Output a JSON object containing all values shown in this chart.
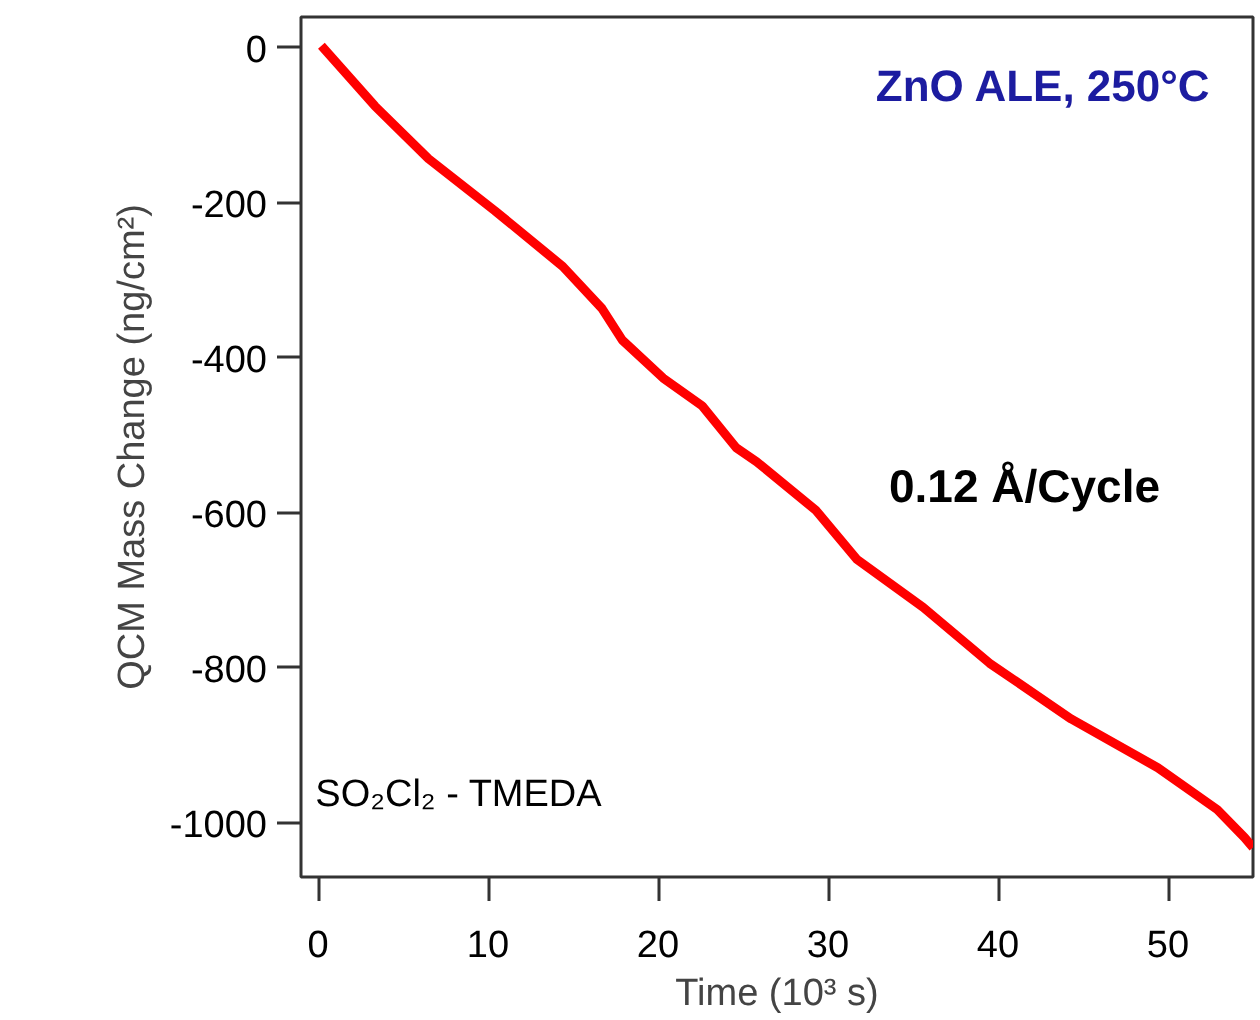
{
  "chart_data": {
    "type": "line",
    "title": "ZnO ALE, 250°C",
    "xlabel": "Time (10³ s)",
    "ylabel": "QCM Mass Change (ng/cm²)",
    "annotations": [
      "0.12 Å/Cycle",
      "SO₂Cl₂ - TMEDA"
    ],
    "x": [
      0.2,
      3.35,
      6.5,
      10.4,
      14.4,
      16.7,
      17.9,
      20.3,
      22.6,
      24.6,
      25.8,
      29.3,
      31.7,
      35.6,
      39.5,
      44.3,
      49.4,
      52.9,
      54.5,
      55
    ],
    "series": [
      {
        "color": "#ff0000",
        "values": [
          3,
          -75,
          -143,
          -210,
          -282,
          -336,
          -377,
          -426,
          -462,
          -516,
          -534,
          -597,
          -660,
          -722,
          -794,
          -866,
          -929,
          -983,
          -1019,
          -1032
        ]
      }
    ],
    "xlim": [
      -1,
      55
    ],
    "ylim": [
      -1070,
      40
    ],
    "xticks": [
      0,
      10,
      20,
      30,
      40,
      50
    ],
    "yticks": [
      0,
      -200,
      -400,
      -600,
      -800,
      -1000
    ],
    "grid": false,
    "marker": "none",
    "line_style": "solid"
  }
}
